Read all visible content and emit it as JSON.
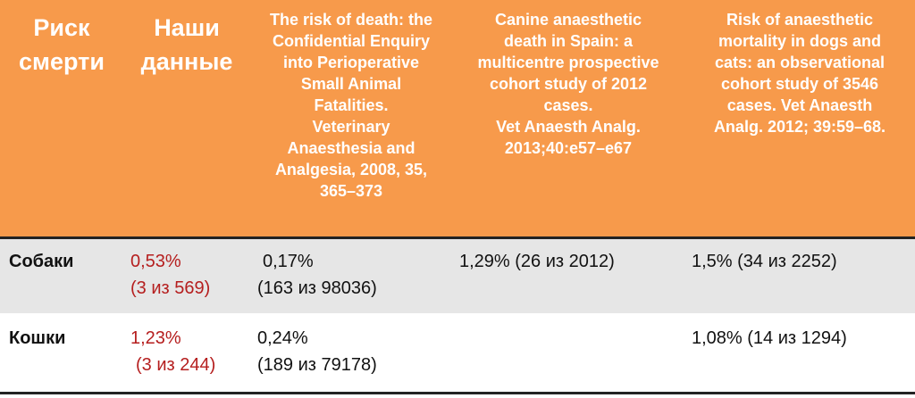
{
  "table": {
    "headers": {
      "risk": [
        "Риск",
        "смерти"
      ],
      "ours": [
        "Наши",
        "данные"
      ],
      "ref1": [
        "The risk of death: the",
        "Confidential Enquiry",
        "into Perioperative",
        "Small Animal",
        "Fatalities.",
        "Veterinary",
        "Anaesthesia and",
        "Analgesia, 2008, 35,",
        "365–373"
      ],
      "ref2": [
        "Canine anaesthetic",
        "death in Spain: a",
        "multicentre prospective",
        "cohort study of 2012",
        "cases.",
        "Vet Anaesth Analg.",
        "2013;40:e57–e67"
      ],
      "ref3": [
        "Risk of anaesthetic",
        "mortality in dogs and",
        "cats: an observational",
        "cohort study of 3546",
        "cases. Vet Anaesth",
        "Analg. 2012; 39:59–68."
      ]
    },
    "rows": {
      "dogs": {
        "species": "Собаки",
        "ours_pct": "0,53%",
        "ours_count": "(3 из 569)",
        "ref1_pct": "0,17%",
        "ref1_count": "(163 из 98036)",
        "ref2": "1,29% (26 из 2012)",
        "ref3": "1,5% (34 из 2252)"
      },
      "cats": {
        "species": "Кошки",
        "ours_pct": "1,23%",
        "ours_count": "(3 из 244)",
        "ref1_pct": "0,24%",
        "ref1_count": "(189 из 79178)",
        "ref2": "",
        "ref3": "1,08% (14 из 1294)"
      }
    }
  },
  "colors": {
    "header_bg": "#f79a4b",
    "header_text": "#ffffff",
    "dog_row_bg": "#e6e6e6",
    "highlight_text": "#b51e1e"
  }
}
